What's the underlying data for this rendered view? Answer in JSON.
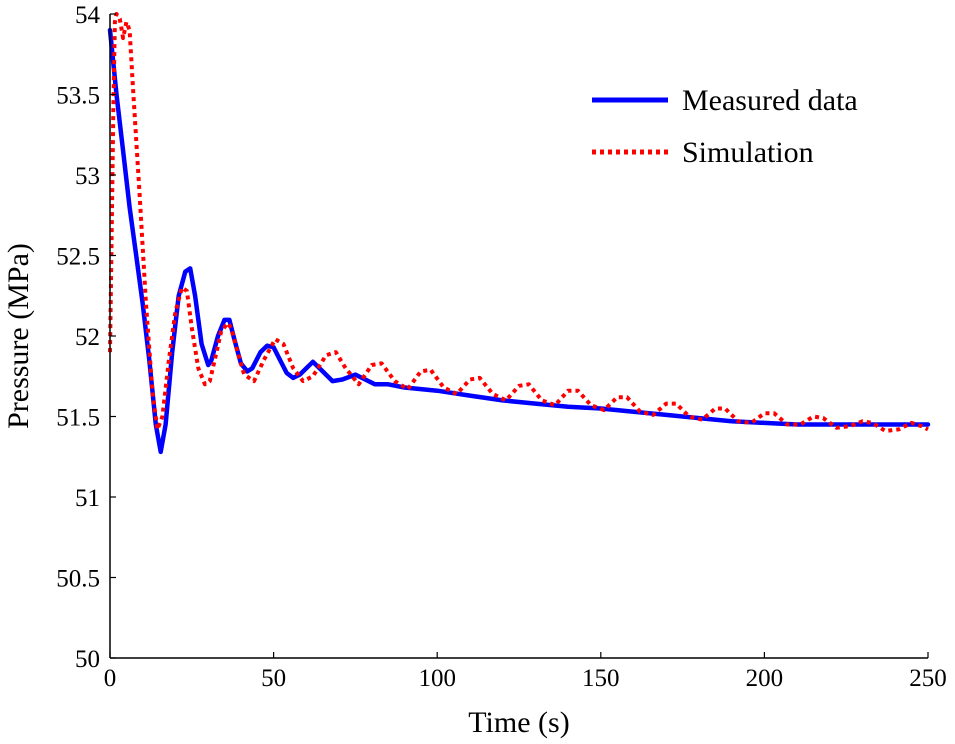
{
  "chart_data": {
    "type": "line",
    "title": "",
    "xlabel": "Time (s)",
    "ylabel": "Pressure (MPa)",
    "xlim": [
      0,
      250
    ],
    "ylim": [
      50,
      54
    ],
    "xticks": [
      "0",
      "50",
      "100",
      "150",
      "200",
      "250"
    ],
    "yticks": [
      "50",
      "50.5",
      "51",
      "51.5",
      "52",
      "52.5",
      "53",
      "53.5",
      "54"
    ],
    "grid": false,
    "legend_position": "top-right",
    "series": [
      {
        "name": "Measured data",
        "color": "#0000ff",
        "style": "solid",
        "x": [
          0,
          2,
          4,
          6,
          8,
          10,
          12,
          14,
          15.5,
          17,
          19,
          21,
          23,
          24.5,
          26,
          28,
          30,
          31,
          33,
          35,
          36.5,
          38,
          40,
          42,
          43.5,
          46,
          48,
          50,
          52,
          54,
          56,
          58,
          62,
          65,
          68,
          71,
          75,
          78,
          81,
          85,
          90,
          100,
          110,
          120,
          130,
          140,
          150,
          160,
          170,
          180,
          190,
          200,
          210,
          220,
          230,
          240,
          250
        ],
        "y": [
          53.9,
          53.5,
          53.15,
          52.8,
          52.5,
          52.2,
          51.85,
          51.45,
          51.28,
          51.45,
          51.9,
          52.25,
          52.4,
          52.42,
          52.25,
          51.95,
          51.82,
          51.85,
          52.0,
          52.1,
          52.1,
          51.98,
          51.83,
          51.78,
          51.8,
          51.9,
          51.94,
          51.93,
          51.85,
          51.77,
          51.74,
          51.76,
          51.84,
          51.78,
          51.72,
          51.73,
          51.76,
          51.73,
          51.7,
          51.7,
          51.68,
          51.66,
          51.63,
          51.6,
          51.58,
          51.56,
          51.55,
          51.53,
          51.51,
          51.49,
          51.47,
          51.46,
          51.45,
          51.45,
          51.45,
          51.45,
          51.45
        ]
      },
      {
        "name": "Simulation",
        "color": "#ff0000",
        "style": "dotted",
        "x": [
          0,
          0.5,
          1,
          1.5,
          2,
          3,
          4,
          5,
          6,
          7,
          9,
          11,
          13,
          14.5,
          16,
          18,
          20,
          22,
          23.5,
          25,
          27,
          29,
          30.5,
          32,
          34,
          36,
          37,
          39,
          41,
          44,
          47,
          50.5,
          53,
          56,
          59,
          62,
          66,
          69,
          72,
          76,
          80,
          83,
          87,
          91,
          95,
          98,
          102,
          106,
          110,
          113,
          117,
          121,
          125,
          128,
          132,
          136,
          140,
          143,
          147,
          151,
          155,
          158,
          162,
          166,
          170,
          173,
          177,
          181,
          185,
          188,
          192,
          196,
          200,
          203,
          207,
          211,
          215,
          218,
          222,
          226,
          230,
          233,
          237,
          241,
          245,
          248,
          250
        ],
        "y": [
          51.9,
          52.6,
          53.4,
          53.95,
          54.0,
          53.97,
          53.85,
          53.95,
          53.9,
          53.55,
          52.9,
          52.2,
          51.65,
          51.42,
          51.5,
          51.85,
          52.15,
          52.3,
          52.28,
          52.05,
          51.8,
          51.7,
          51.72,
          51.85,
          52.03,
          52.08,
          52.05,
          51.9,
          51.76,
          51.72,
          51.85,
          51.98,
          51.95,
          51.8,
          51.72,
          51.75,
          51.88,
          51.9,
          51.8,
          51.7,
          51.82,
          51.83,
          51.72,
          51.67,
          51.78,
          51.79,
          51.68,
          51.64,
          51.73,
          51.74,
          51.64,
          51.6,
          51.69,
          51.7,
          51.6,
          51.57,
          51.66,
          51.66,
          51.57,
          51.54,
          51.62,
          51.62,
          51.53,
          51.51,
          51.58,
          51.58,
          51.5,
          51.48,
          51.55,
          51.55,
          51.47,
          51.46,
          51.52,
          51.52,
          51.45,
          51.45,
          51.5,
          51.49,
          51.43,
          51.44,
          51.47,
          51.46,
          51.41,
          51.42,
          51.46,
          51.44,
          51.42
        ]
      }
    ]
  }
}
